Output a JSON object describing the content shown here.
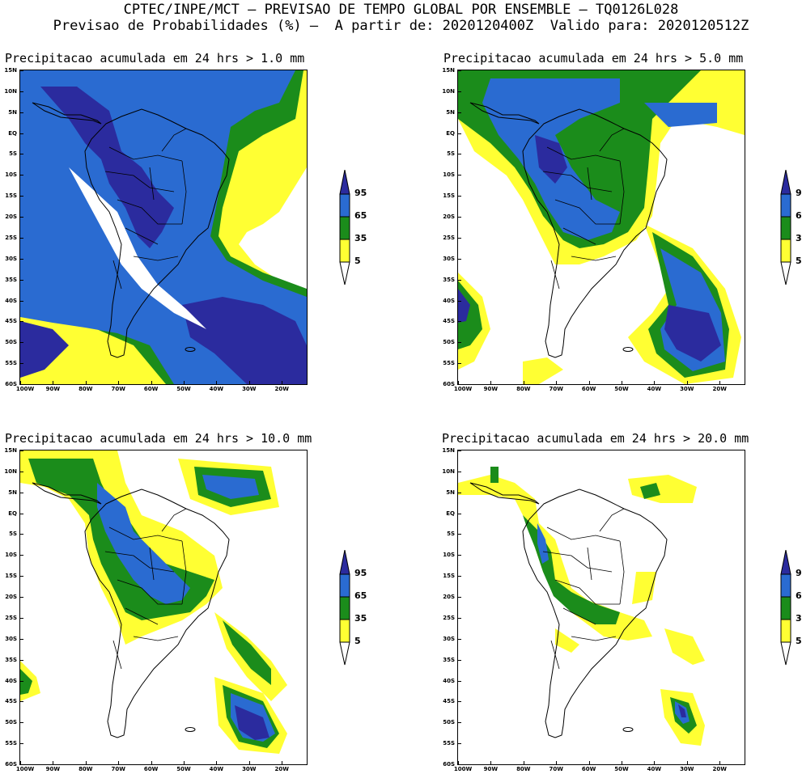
{
  "header": {
    "line1": "CPTEC/INPE/MCT – PREVISAO DE TEMPO GLOBAL POR ENSEMBLE – TQ0126L028",
    "line2": "Previsao de Probabilidades (%) –  A partir de: 2020120400Z  Valido para: 2020120512Z"
  },
  "axes": {
    "lat_labels": [
      "15N",
      "10N",
      "5N",
      "EQ",
      "5S",
      "10S",
      "15S",
      "20S",
      "25S",
      "30S",
      "35S",
      "40S",
      "45S",
      "50S",
      "55S",
      "60S"
    ],
    "lon_labels": [
      "100W",
      "90W",
      "80W",
      "70W",
      "60W",
      "50W",
      "40W",
      "30W",
      "20W"
    ]
  },
  "legend": {
    "labels": [
      "95",
      "65",
      "35",
      "5"
    ],
    "colors": {
      "c95": "#2b2b9e",
      "c65": "#2a6bd1",
      "c35": "#1b8c1b",
      "c5": "#ffff33",
      "edge": "#000000"
    }
  },
  "panels": [
    {
      "title": "Precipitacao acumulada em 24 hrs > 1.0 mm"
    },
    {
      "title": "Precipitacao acumulada em 24 hrs > 5.0 mm"
    },
    {
      "title": "Precipitacao acumulada em 24 hrs > 10.0 mm"
    },
    {
      "title": "Precipitacao acumulada em 24 hrs > 20.0 mm"
    }
  ]
}
